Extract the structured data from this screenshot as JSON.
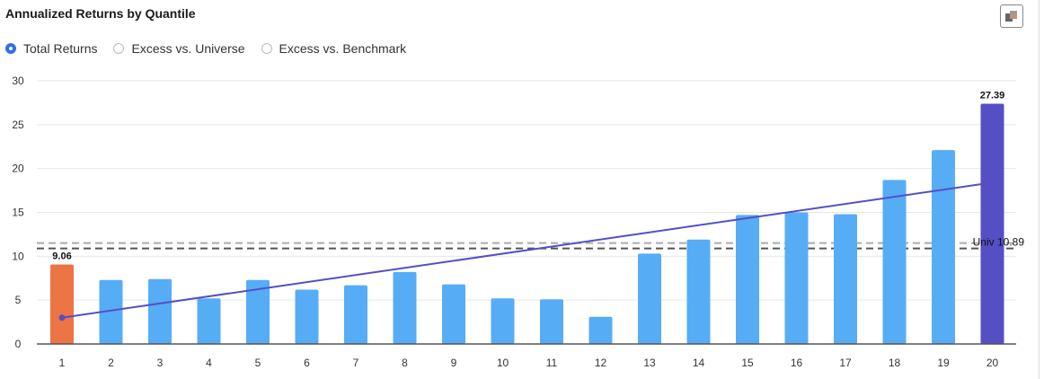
{
  "header": {
    "title": "Annualized Returns by Quantile",
    "export_icon": "export-icon"
  },
  "radios": [
    {
      "label": "Total Returns",
      "selected": true
    },
    {
      "label": "Excess vs. Universe",
      "selected": false
    },
    {
      "label": "Excess vs. Benchmark",
      "selected": false
    }
  ],
  "chart_data": {
    "type": "bar",
    "title": "Annualized Returns by Quantile",
    "categories": [
      "1",
      "2",
      "3",
      "4",
      "5",
      "6",
      "7",
      "8",
      "9",
      "10",
      "11",
      "12",
      "13",
      "14",
      "15",
      "16",
      "17",
      "18",
      "19",
      "20"
    ],
    "values": [
      9.06,
      7.3,
      7.4,
      5.2,
      7.3,
      6.2,
      6.7,
      8.2,
      6.8,
      5.2,
      5.1,
      3.1,
      10.3,
      11.9,
      14.7,
      15.0,
      14.8,
      18.7,
      22.1,
      27.39
    ],
    "bar_colors": {
      "first": "#ed7445",
      "last": "#544fc5",
      "default": "#57acf6"
    },
    "data_labels": {
      "0": "9.06",
      "19": "27.39"
    },
    "ylim": [
      0,
      30
    ],
    "yticks": [
      0,
      5,
      10,
      15,
      20,
      25,
      30
    ],
    "grid": true,
    "trend_line": {
      "start": 3.0,
      "end": 18.4,
      "color": "#544fc5"
    },
    "reference_lines": [
      {
        "label": "Univ 10.89",
        "value": 10.89,
        "color": "#555555"
      },
      {
        "label": "",
        "value": 11.5,
        "color": "#aaaaaa"
      }
    ]
  }
}
